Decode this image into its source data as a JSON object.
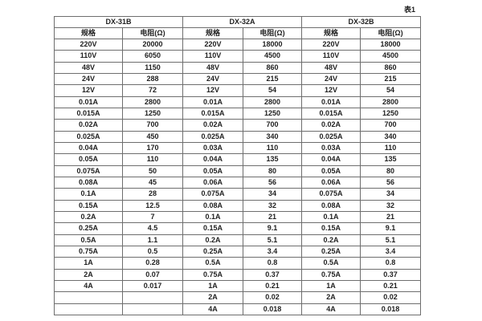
{
  "caption": "表1",
  "table": {
    "groups": [
      {
        "title": "DX-31B",
        "columns": {
          "spec": "规格",
          "resistance": "电阻(Ω)"
        },
        "rows": [
          [
            "220V",
            "20000"
          ],
          [
            "110V",
            "6050"
          ],
          [
            "48V",
            "1150"
          ],
          [
            "24V",
            "288"
          ],
          [
            "12V",
            "72"
          ],
          [
            "0.01A",
            "2800"
          ],
          [
            "0.015A",
            "1250"
          ],
          [
            "0.02A",
            "700"
          ],
          [
            "0.025A",
            "450"
          ],
          [
            "0.04A",
            "170"
          ],
          [
            "0.05A",
            "110"
          ],
          [
            "0.075A",
            "50"
          ],
          [
            "0.08A",
            "45"
          ],
          [
            "0.1A",
            "28"
          ],
          [
            "0.15A",
            "12.5"
          ],
          [
            "0.2A",
            "7"
          ],
          [
            "0.25A",
            "4.5"
          ],
          [
            "0.5A",
            "1.1"
          ],
          [
            "0.75A",
            "0.5"
          ],
          [
            "1A",
            "0.28"
          ],
          [
            "2A",
            "0.07"
          ],
          [
            "4A",
            "0.017"
          ],
          [
            "",
            ""
          ],
          [
            "",
            ""
          ]
        ]
      },
      {
        "title": "DX-32A",
        "columns": {
          "spec": "规格",
          "resistance": "电阻(Ω)"
        },
        "rows": [
          [
            "220V",
            "18000"
          ],
          [
            "110V",
            "4500"
          ],
          [
            "48V",
            "860"
          ],
          [
            "24V",
            "215"
          ],
          [
            "12V",
            "54"
          ],
          [
            "0.01A",
            "2800"
          ],
          [
            "0.015A",
            "1250"
          ],
          [
            "0.02A",
            "700"
          ],
          [
            "0.025A",
            "340"
          ],
          [
            "0.03A",
            "110"
          ],
          [
            "0.04A",
            "135"
          ],
          [
            "0.05A",
            "80"
          ],
          [
            "0.06A",
            "56"
          ],
          [
            "0.075A",
            "34"
          ],
          [
            "0.08A",
            "32"
          ],
          [
            "0.1A",
            "21"
          ],
          [
            "0.15A",
            "9.1"
          ],
          [
            "0.2A",
            "5.1"
          ],
          [
            "0.25A",
            "3.4"
          ],
          [
            "0.5A",
            "0.8"
          ],
          [
            "0.75A",
            "0.37"
          ],
          [
            "1A",
            "0.21"
          ],
          [
            "2A",
            "0.02"
          ],
          [
            "4A",
            "0.018"
          ]
        ]
      },
      {
        "title": "DX-32B",
        "columns": {
          "spec": "规格",
          "resistance": "电阻(Ω)"
        },
        "rows": [
          [
            "220V",
            "18000"
          ],
          [
            "110V",
            "4500"
          ],
          [
            "48V",
            "860"
          ],
          [
            "24V",
            "215"
          ],
          [
            "12V",
            "54"
          ],
          [
            "0.01A",
            "2800"
          ],
          [
            "0.015A",
            "1250"
          ],
          [
            "0.02A",
            "700"
          ],
          [
            "0.025A",
            "340"
          ],
          [
            "0.03A",
            "110"
          ],
          [
            "0.04A",
            "135"
          ],
          [
            "0.05A",
            "80"
          ],
          [
            "0.06A",
            "56"
          ],
          [
            "0.075A",
            "34"
          ],
          [
            "0.08A",
            "32"
          ],
          [
            "0.1A",
            "21"
          ],
          [
            "0.15A",
            "9.1"
          ],
          [
            "0.2A",
            "5.1"
          ],
          [
            "0.25A",
            "3.4"
          ],
          [
            "0.5A",
            "0.8"
          ],
          [
            "0.75A",
            "0.37"
          ],
          [
            "1A",
            "0.21"
          ],
          [
            "2A",
            "0.02"
          ],
          [
            "4A",
            "0.018"
          ]
        ]
      }
    ]
  },
  "colors": {
    "border": "#6e6e6e",
    "text": "#1f1f1f",
    "background": "#ffffff"
  }
}
